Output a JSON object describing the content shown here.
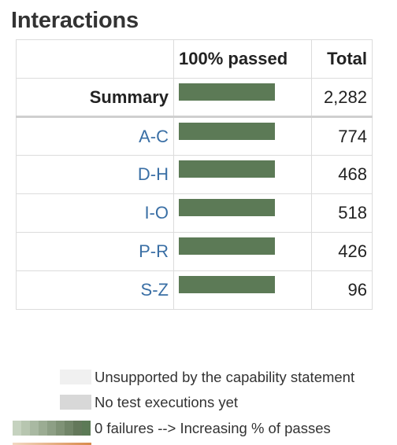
{
  "title": "Interactions",
  "table": {
    "headers": [
      "",
      "100% passed",
      "Total"
    ],
    "summary": {
      "label": "Summary",
      "pass_fraction": 1.0,
      "total": "2,282"
    },
    "rows": [
      {
        "label": "A-C",
        "pass_fraction": 1.0,
        "total": "774"
      },
      {
        "label": "D-H",
        "pass_fraction": 1.0,
        "total": "468"
      },
      {
        "label": "I-O",
        "pass_fraction": 1.0,
        "total": "518"
      },
      {
        "label": "P-R",
        "pass_fraction": 1.0,
        "total": "426"
      },
      {
        "label": "S-Z",
        "pass_fraction": 1.0,
        "total": "96"
      }
    ]
  },
  "legend": {
    "unsupported": "Unsupported by the capability statement",
    "no_exec": "No test executions yet",
    "passes": "0 failures --> Increasing % of passes"
  },
  "colors": {
    "pass_bar": "#5c7a56",
    "unsupported": "#f0f0f0",
    "no_exec": "#d8d8d8",
    "link": "#3a6fa5",
    "gradient": [
      "#c5d2bf",
      "#b7c6b0",
      "#a9b9a2",
      "#9bac93",
      "#8d9f85",
      "#7f9276",
      "#718568",
      "#63785a",
      "#5c7a56"
    ]
  }
}
